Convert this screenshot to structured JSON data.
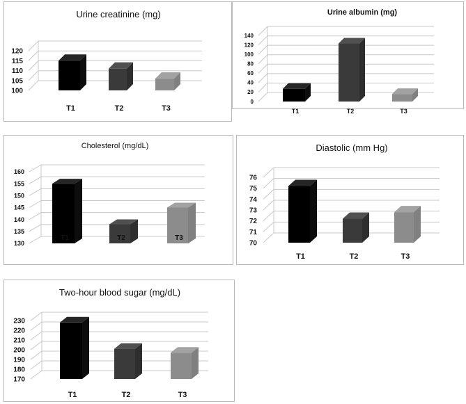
{
  "chart_data": [
    {
      "type": "bar",
      "title": "Urine creatinine (mg)",
      "categories": [
        "T1",
        "T2",
        "T3"
      ],
      "values": [
        115,
        111,
        106
      ],
      "ylim": [
        100,
        120
      ],
      "yticks": [
        100,
        105,
        110,
        115,
        120
      ],
      "colors": [
        "#000000",
        "#3a3a3a",
        "#8c8c8c"
      ]
    },
    {
      "type": "bar",
      "title": "Urine albumin (mg)",
      "categories": [
        "T1",
        "T2",
        "T3"
      ],
      "values": [
        27,
        123,
        16
      ],
      "ylim": [
        0,
        140
      ],
      "yticks": [
        0,
        20,
        40,
        60,
        80,
        100,
        120,
        140
      ],
      "colors": [
        "#000000",
        "#3a3a3a",
        "#8c8c8c"
      ]
    },
    {
      "type": "bar",
      "title": "Cholesterol (mg/dL)",
      "categories": [
        "T1",
        "T2",
        "T3"
      ],
      "values": [
        155,
        138,
        145
      ],
      "ylim": [
        130,
        160
      ],
      "yticks": [
        130,
        135,
        140,
        145,
        150,
        155,
        160
      ],
      "colors": [
        "#000000",
        "#3a3a3a",
        "#8c8c8c"
      ]
    },
    {
      "type": "bar",
      "title": "Diastolic (mm Hg)",
      "categories": [
        "T1",
        "T2",
        "T3"
      ],
      "values": [
        75.2,
        72.2,
        72.8
      ],
      "ylim": [
        70,
        76
      ],
      "yticks": [
        70,
        71,
        72,
        73,
        74,
        75,
        76
      ],
      "colors": [
        "#000000",
        "#3a3a3a",
        "#8c8c8c"
      ]
    },
    {
      "type": "bar",
      "title": "Two-hour blood sugar (mg/dL)",
      "categories": [
        "T1",
        "T2",
        "T3"
      ],
      "values": [
        228,
        201,
        197
      ],
      "ylim": [
        170,
        230
      ],
      "yticks": [
        170,
        180,
        190,
        200,
        210,
        220,
        230
      ],
      "colors": [
        "#000000",
        "#3a3a3a",
        "#8c8c8c"
      ]
    }
  ]
}
